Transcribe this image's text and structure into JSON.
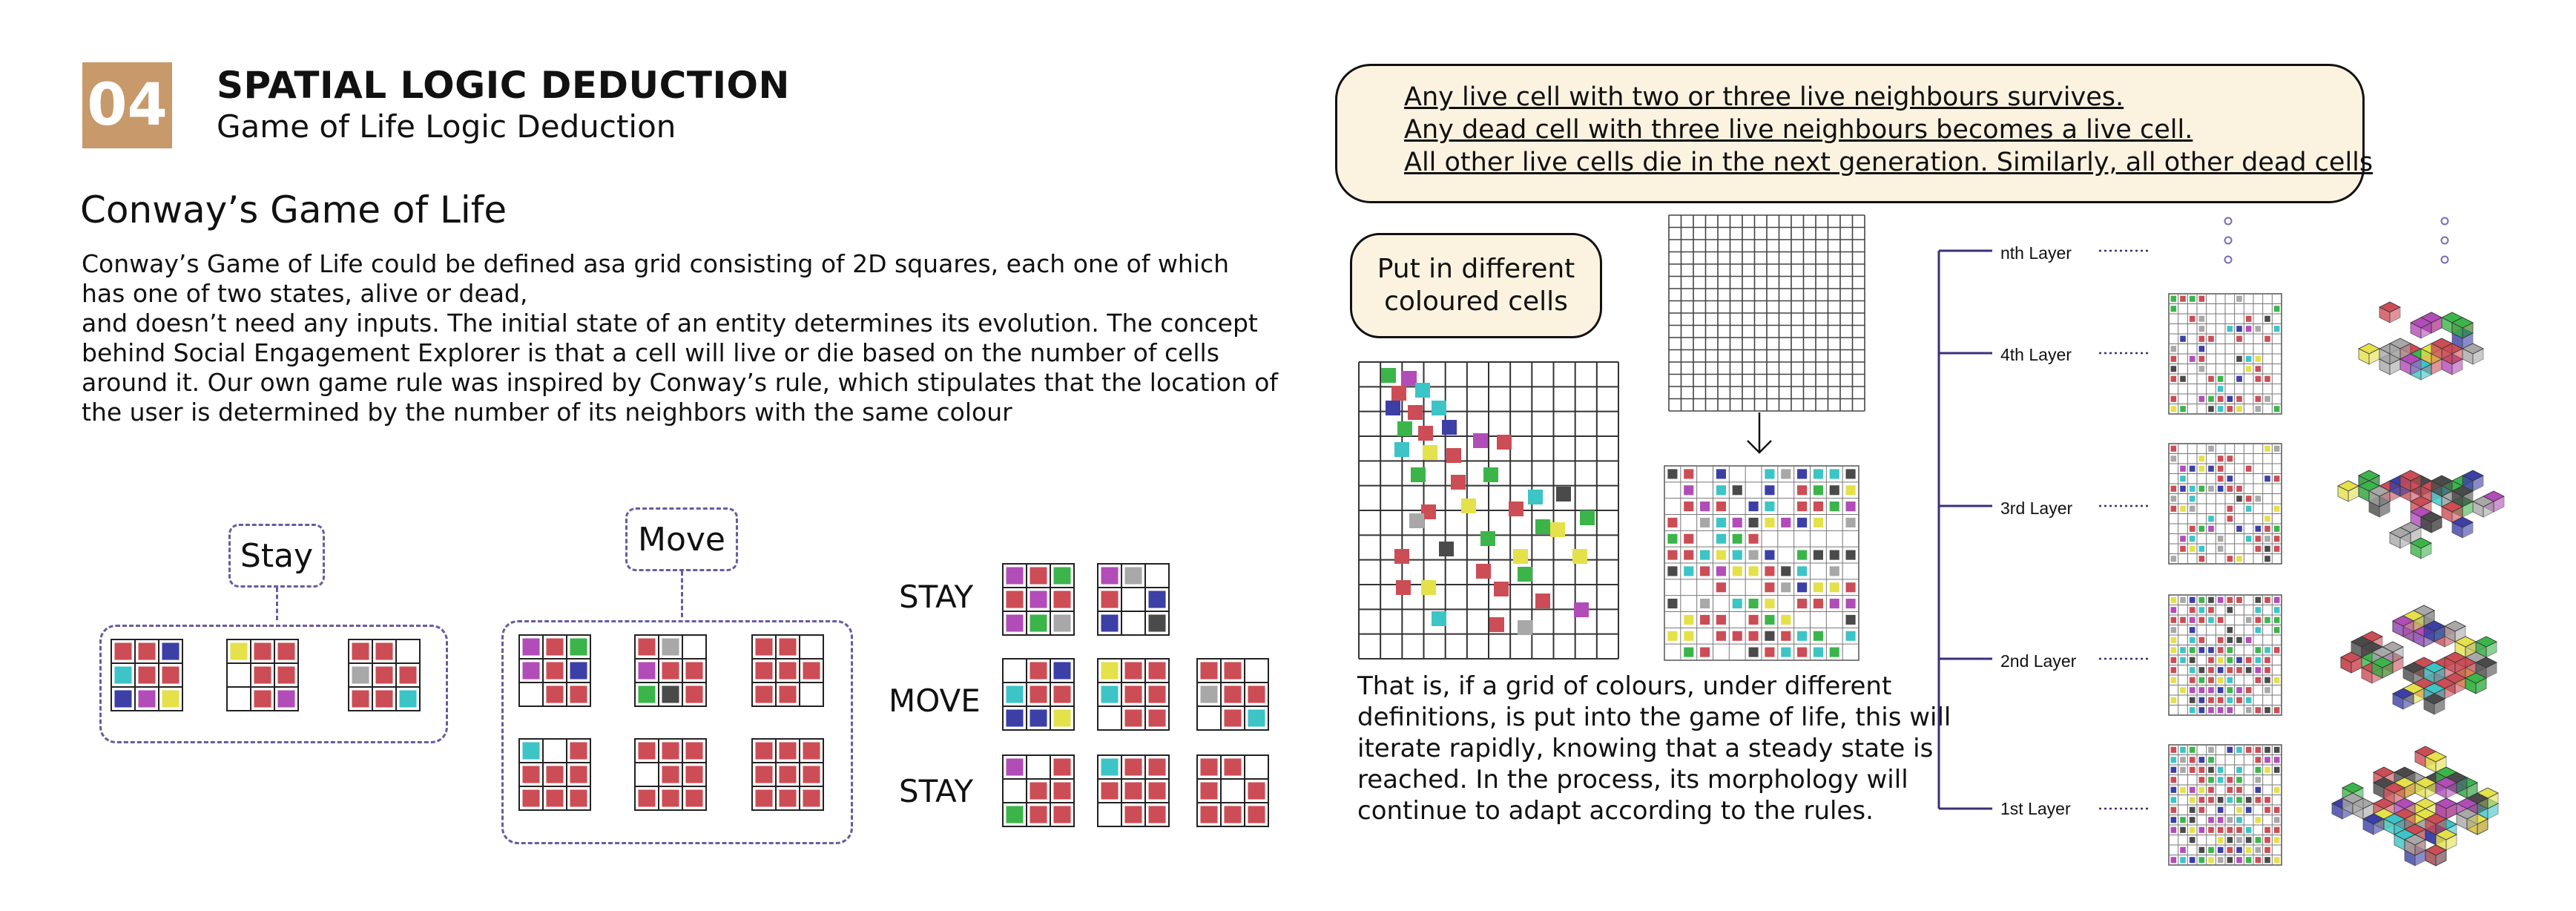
{
  "header": {
    "number": "04",
    "title": "SPATIAL LOGIC DEDUCTION",
    "subtitle": "Game of Life Logic Deduction"
  },
  "section": {
    "heading": "Conway’s Game of Life",
    "paragraph_lines": [
      "Conway’s Game of Life could be defined asa grid consisting of 2D squares, each one of which",
      "has one of two states, alive or dead,",
      "and doesn’t need any inputs. The initial state of an entity determines its evolution. The concept",
      "behind Social Engagement Explorer is that a cell will live or die based on the number of cells",
      "around it. Our own game rule was inspired by Conway’s rule, which stipulates that the location of",
      "the user is determined by the number of its neighbors with the same colour"
    ]
  },
  "diagram": {
    "stay_tag": "Stay",
    "move_tag": "Move",
    "row_labels": [
      "STAY",
      "MOVE",
      "STAY"
    ]
  },
  "rules": {
    "lines": [
      "Any live cell with two or three live neighbours survives.",
      "Any dead cell with three live neighbours becomes a live cell.",
      "All other live cells die in the next generation. Similarly, all other dead cells"
    ]
  },
  "callout": {
    "lines": [
      "Put in different",
      "coloured cells"
    ]
  },
  "description": {
    "lines": [
      "That is, if a grid of colours, under different",
      "definitions, is put into the game of life, this will",
      "iterate rapidly, knowing that a steady state is",
      "reached. In the process, its morphology will",
      "continue to adapt according to the rules."
    ]
  },
  "layers": [
    "nth Layer",
    "4th Layer",
    "3rd Layer",
    "2nd Layer",
    "1st Layer"
  ],
  "colors": {
    "accent": "#c8996a",
    "dash": "#6b5aa0",
    "red": "#cc4d55",
    "blue": "#3b3fa6",
    "green": "#3bb54a",
    "purple": "#b24cb8",
    "cyan": "#3cc4c6",
    "yellow": "#e4e14a",
    "gray": "#a8a8a8",
    "dark": "#4a4a4a",
    "orange": "#f0b033",
    "callout_bg": "#fbf3e0"
  }
}
